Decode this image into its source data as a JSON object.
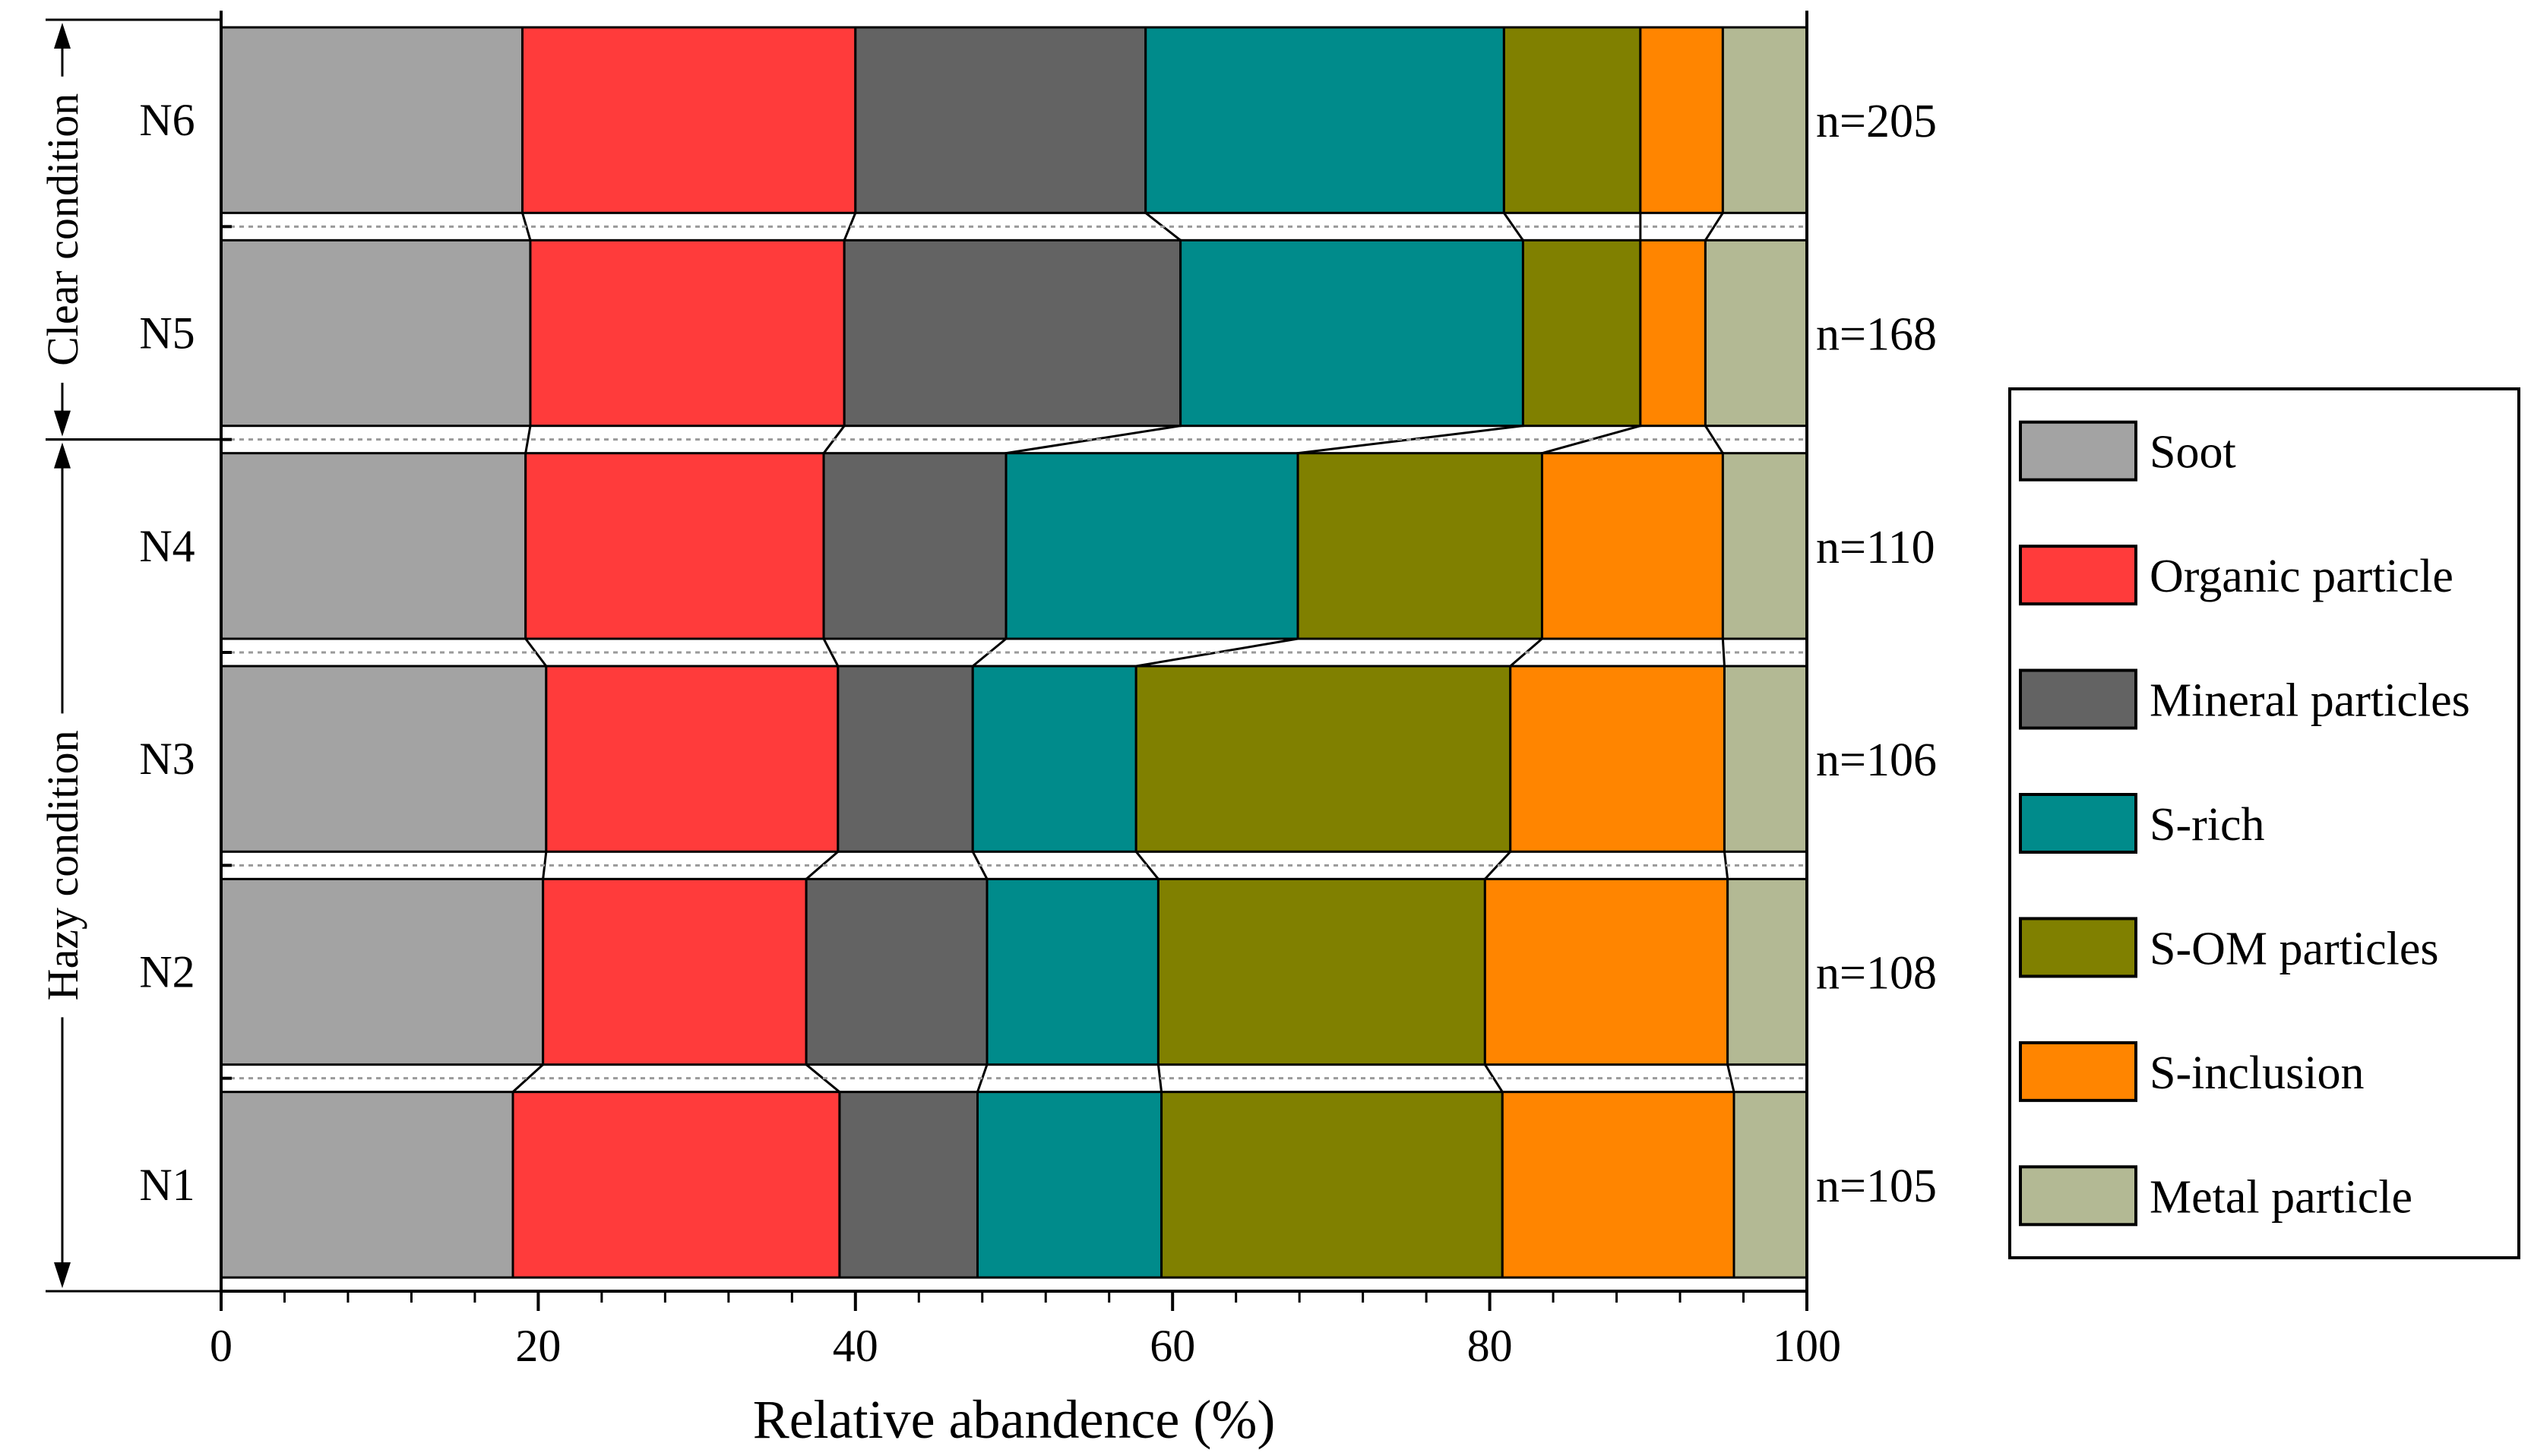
{
  "chart_data": {
    "type": "bar",
    "orientation": "horizontal",
    "stacked": true,
    "categories": [
      "N6",
      "N5",
      "N4",
      "N3",
      "N2",
      "N1"
    ],
    "counts": [
      "n=205",
      "n=168",
      "n=110",
      "n=106",
      "n=108",
      "n=105"
    ],
    "series": [
      {
        "name": "Soot",
        "color": "#a3a3a3",
        "values": [
          19.0,
          19.5,
          19.2,
          20.5,
          20.3,
          18.4
        ]
      },
      {
        "name": "Organic particle",
        "color": "#ff3b3b",
        "values": [
          21.0,
          19.8,
          18.8,
          18.4,
          16.6,
          20.6
        ]
      },
      {
        "name": "Mineral particles",
        "color": "#636363",
        "values": [
          18.3,
          21.2,
          11.5,
          8.5,
          11.4,
          8.7
        ]
      },
      {
        "name": "S-rich",
        "color": "#008b8b",
        "values": [
          22.6,
          21.6,
          18.4,
          10.3,
          10.8,
          11.6
        ]
      },
      {
        "name": "S-OM particles",
        "color": "#808000",
        "values": [
          8.6,
          7.4,
          15.4,
          23.6,
          20.6,
          21.5
        ]
      },
      {
        "name": "S-inclusion",
        "color": "#ff8500",
        "values": [
          5.2,
          4.1,
          11.4,
          13.5,
          15.3,
          14.6
        ]
      },
      {
        "name": "Metal particle",
        "color": "#b3b994",
        "values": [
          5.3,
          6.4,
          5.3,
          5.2,
          5.0,
          4.6
        ]
      }
    ],
    "xlim": [
      0,
      100
    ],
    "xticks": [
      0,
      20,
      40,
      60,
      80,
      100
    ],
    "xlabel": "Relative abandence (%)",
    "legend": "right",
    "groups": [
      {
        "label": "Clear condition",
        "rows": [
          "N6",
          "N5"
        ]
      },
      {
        "label": "Hazy condition",
        "rows": [
          "N4",
          "N3",
          "N2",
          "N1"
        ]
      }
    ]
  }
}
